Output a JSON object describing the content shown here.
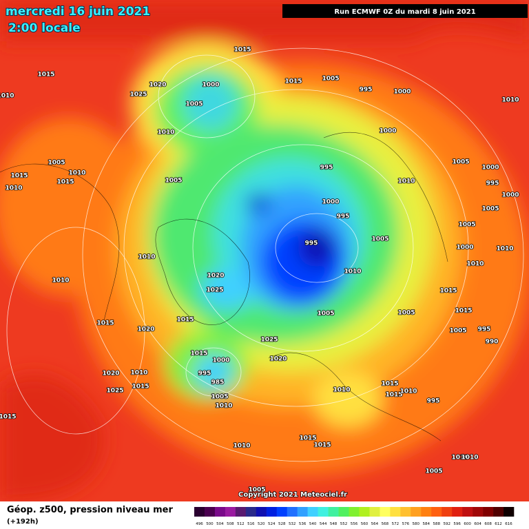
{
  "header": {
    "date": "mercredi 16 juin 2021",
    "time": "2:00 locale",
    "run": "Run ECMWF 0Z du mardi 8 juin 2021"
  },
  "copyright": "Copyright 2021 Meteociel.fr",
  "footer": {
    "title": "Géop. z500, pression niveau mer",
    "lead": "(+192h)"
  },
  "legend": {
    "labels": [
      496,
      500,
      504,
      508,
      512,
      516,
      520,
      524,
      528,
      532,
      536,
      540,
      544,
      548,
      552,
      556,
      560,
      564,
      568,
      572,
      576,
      580,
      584,
      588,
      592,
      596,
      600,
      604,
      608,
      612,
      616
    ],
    "colors": [
      "#2a0030",
      "#4b0050",
      "#7a0a8a",
      "#9a1aa0",
      "#5a1a70",
      "#2a2a8a",
      "#1010b0",
      "#0020e0",
      "#0040ff",
      "#2070ff",
      "#30a0ff",
      "#40d0ff",
      "#40f0e0",
      "#40f0a0",
      "#50f060",
      "#80f030",
      "#b0f020",
      "#e0f040",
      "#ffff60",
      "#ffe040",
      "#ffc030",
      "#ffa020",
      "#ff8010",
      "#ff6010",
      "#f04010",
      "#e02010",
      "#c01010",
      "#a00808",
      "#800000",
      "#500000",
      "#100000"
    ]
  },
  "isobars": [
    1015,
    1015,
    1020,
    1000,
    1025,
    1005,
    1015,
    1005,
    995,
    1000,
    1010,
    1010,
    1010,
    1000,
    1005,
    1010,
    1015,
    1015,
    1010,
    1005,
    995,
    1010,
    1005,
    1000,
    995,
    1000,
    1005,
    1000,
    995,
    995,
    1005,
    1005,
    1000,
    1010,
    1010,
    1010,
    1010,
    1020,
    1010,
    1025,
    1015,
    1015,
    1005,
    1005,
    1015,
    1015,
    1020,
    995,
    990,
    1005,
    1025,
    1015,
    1000,
    1020,
    1010,
    1020,
    1015,
    995,
    985,
    1025,
    1005,
    1010,
    1010,
    1015,
    1015,
    1010,
    995,
    1015,
    1010,
    1015,
    1015,
    1010,
    1010,
    1005,
    1005
  ]
}
